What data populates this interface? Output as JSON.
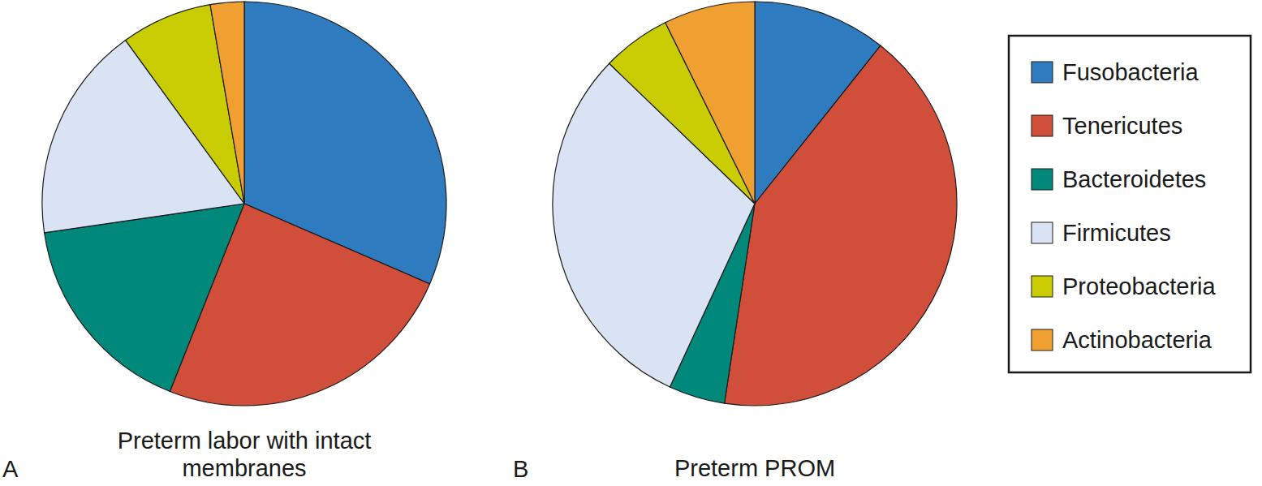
{
  "chart_data": {
    "type": "pie",
    "categories": [
      "Fusobacteria",
      "Tenericutes",
      "Bacteroidetes",
      "Firmicutes",
      "Proteobacteria",
      "Actinobacteria"
    ],
    "colors": [
      "#2e7bbf",
      "#d14e3a",
      "#00897b",
      "#dae3f3",
      "#c8cc00",
      "#f0a030"
    ],
    "legend": "right",
    "series": [
      {
        "name": "Preterm labor with intact membranes",
        "values": [
          31.5,
          24.5,
          16.7,
          17.3,
          7.3,
          2.7
        ]
      },
      {
        "name": "Preterm PROM",
        "values": [
          10.7,
          41.7,
          4.5,
          30.3,
          5.5,
          7.3
        ]
      }
    ],
    "annotations": [
      "A",
      "B"
    ]
  }
}
